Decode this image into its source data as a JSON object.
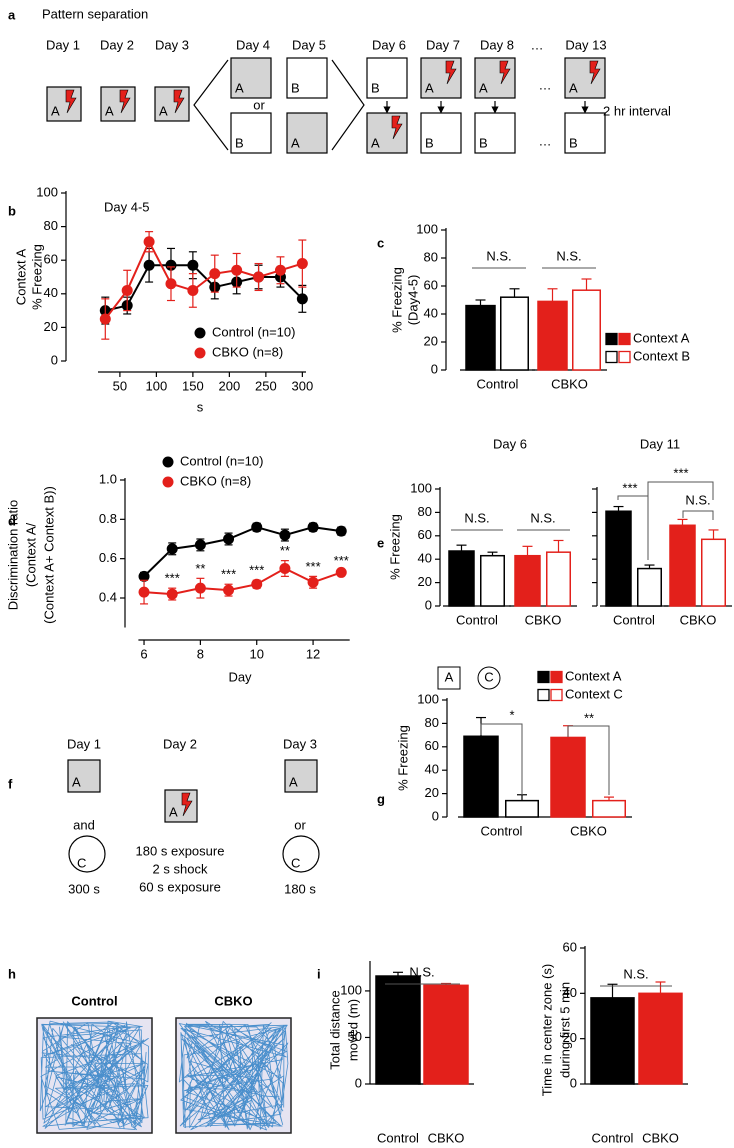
{
  "figure_a": {
    "panel": "a",
    "title": "Pattern separation",
    "days": [
      "Day 1",
      "Day 2",
      "Day 3",
      "Day 4",
      "Day 5",
      "Day 6",
      "Day 7",
      "Day 8",
      "…",
      "Day 13"
    ],
    "or": "or",
    "interval": "2 hr interval",
    "boxes": [
      {
        "label": "A",
        "gray": true,
        "shock": true
      },
      {
        "label": "A",
        "gray": true,
        "shock": true
      },
      {
        "label": "A",
        "gray": true,
        "shock": true
      },
      {
        "label": "A",
        "gray": true,
        "shock": false
      },
      {
        "label": "B",
        "gray": false,
        "shock": false
      },
      {
        "label": "B",
        "gray": false,
        "shock": false
      },
      {
        "label": "A",
        "gray": true,
        "shock": false
      },
      {
        "label": "B",
        "gray": false,
        "shock": false
      },
      {
        "label": "A",
        "gray": true,
        "shock": true
      },
      {
        "label": "A",
        "gray": true,
        "shock": true
      },
      {
        "label": "B",
        "gray": false,
        "shock": false
      },
      {
        "label": "A",
        "gray": true,
        "shock": true
      },
      {
        "label": "B",
        "gray": false,
        "shock": false
      },
      {
        "label": "A",
        "gray": true,
        "shock": true
      },
      {
        "label": "B",
        "gray": false,
        "shock": false
      }
    ]
  },
  "figure_f": {
    "panel": "f",
    "day1": {
      "label": "Day 1",
      "box": "A",
      "join": "and",
      "circle": "C",
      "duration": "300 s"
    },
    "day2": {
      "label": "Day 2",
      "box": "A",
      "protocol": [
        "180 s exposure",
        "2 s shock",
        "60 s exposure"
      ]
    },
    "day3": {
      "label": "Day 3",
      "box": "A",
      "join": "or",
      "circle": "C",
      "duration": "180 s"
    }
  },
  "figure_h": {
    "panel": "h",
    "groups": [
      {
        "name": "Control",
        "color": "#000000"
      },
      {
        "name": "CBKO",
        "color": "#e3201b"
      }
    ]
  },
  "chart_data": [
    {
      "type": "line",
      "panel": "b",
      "title": "Day 4-5",
      "ylabel": [
        "Context A",
        "% Freezing"
      ],
      "xlabel": "s",
      "x": [
        30,
        60,
        90,
        120,
        150,
        180,
        210,
        240,
        270,
        300
      ],
      "xlim": [
        20,
        305
      ],
      "xticks": [
        50,
        100,
        150,
        200,
        250,
        300
      ],
      "ylim": [
        0,
        100
      ],
      "yticks": [
        0,
        20,
        40,
        60,
        80,
        100
      ],
      "series": [
        {
          "name": "Control (n=10)",
          "color": "#000000",
          "values": [
            30,
            33,
            57,
            57,
            57,
            44,
            47,
            50,
            50,
            37
          ],
          "errors": [
            8,
            5,
            10,
            10,
            8,
            7,
            7,
            7,
            6,
            8
          ]
        },
        {
          "name": "CBKO (n=8)",
          "color": "#e3201b",
          "values": [
            25,
            42,
            71,
            46,
            42,
            52,
            54,
            50,
            54,
            58
          ],
          "errors": [
            12,
            12,
            6,
            10,
            10,
            11,
            10,
            8,
            8,
            14
          ]
        }
      ]
    },
    {
      "type": "bar",
      "panel": "c",
      "ylabel": [
        "% Freezing",
        "(Day4-5)"
      ],
      "categories": [
        "Control",
        "CBKO"
      ],
      "category_colors": [
        "#000000",
        "#e3201b"
      ],
      "ylim": [
        0,
        100
      ],
      "yticks": [
        0,
        20,
        40,
        60,
        80,
        100
      ],
      "show_tick_labels": true,
      "series": [
        {
          "name": "Context A",
          "filled": true,
          "values": [
            46,
            49
          ],
          "errors": [
            4,
            9
          ]
        },
        {
          "name": "Context B",
          "filled": false,
          "values": [
            52,
            57
          ],
          "errors": [
            6,
            8
          ]
        }
      ],
      "annotations": [
        "N.S.",
        "N.S."
      ]
    },
    {
      "type": "line",
      "panel": "d",
      "ylabel": [
        "Discrimination ratio",
        "(Context A/",
        "(Context A+ Context B))"
      ],
      "xlabel": "Day",
      "x": [
        6,
        7,
        8,
        9,
        10,
        11,
        12,
        13
      ],
      "xlim": [
        5.8,
        13.3
      ],
      "xticks": [
        6,
        8,
        10,
        12
      ],
      "ylim": [
        0.25,
        1.0
      ],
      "yticks": [
        0.4,
        0.6,
        0.8,
        {
          "value": 1,
          "label": "1.0"
        }
      ],
      "series": [
        {
          "name": "Control (n=10)",
          "color": "#000000",
          "values": [
            0.51,
            0.65,
            0.67,
            0.7,
            0.76,
            0.72,
            0.76,
            0.74
          ],
          "errors": [
            0.02,
            0.03,
            0.03,
            0.03,
            0.02,
            0.03,
            0.02,
            0.02
          ]
        },
        {
          "name": "CBKO (n=8)",
          "color": "#e3201b",
          "values": [
            0.43,
            0.42,
            0.45,
            0.44,
            0.47,
            0.55,
            0.48,
            0.53
          ],
          "errors": [
            0.06,
            0.03,
            0.05,
            0.03,
            0.02,
            0.04,
            0.03,
            0.01
          ]
        }
      ],
      "annotations": [
        "***",
        "**",
        "***",
        "***",
        "**",
        "***",
        "***"
      ]
    },
    {
      "type": "bar",
      "panel": "e",
      "title": "Day 6",
      "ylabel": [
        "% Freezing"
      ],
      "categories": [
        "Control",
        "CBKO"
      ],
      "category_colors": [
        "#000000",
        "#e3201b"
      ],
      "ylim": [
        0,
        100
      ],
      "yticks": [
        0,
        20,
        40,
        60,
        80,
        100
      ],
      "show_tick_labels": true,
      "series": [
        {
          "filled": true,
          "values": [
            47,
            43
          ],
          "errors": [
            5,
            8
          ]
        },
        {
          "filled": false,
          "values": [
            43,
            46
          ],
          "errors": [
            3,
            10
          ]
        }
      ],
      "annotations": [
        "N.S.",
        "N.S."
      ]
    },
    {
      "type": "bar",
      "title": "Day 11",
      "categories": [
        "Control",
        "CBKO"
      ],
      "category_colors": [
        "#000000",
        "#e3201b"
      ],
      "ylim": [
        0,
        100
      ],
      "yticks": [
        0,
        20,
        40,
        60,
        80,
        100
      ],
      "show_tick_labels": false,
      "series": [
        {
          "filled": true,
          "values": [
            81,
            69
          ],
          "errors": [
            4,
            5
          ]
        },
        {
          "filled": false,
          "values": [
            32,
            57
          ],
          "errors": [
            3,
            8
          ]
        }
      ],
      "annotations": [
        "***",
        "***",
        "N.S."
      ]
    },
    {
      "type": "bar",
      "panel": "g",
      "ylabel": [
        "% Freezing"
      ],
      "context_icons": [
        "A",
        "C"
      ],
      "categories": [
        "Control",
        "CBKO"
      ],
      "category_colors": [
        "#000000",
        "#e3201b"
      ],
      "ylim": [
        0,
        100
      ],
      "yticks": [
        0,
        20,
        40,
        60,
        80,
        100
      ],
      "show_tick_labels": true,
      "series": [
        {
          "name": "Context A",
          "filled": true,
          "values": [
            69,
            68
          ],
          "errors": [
            16,
            10
          ]
        },
        {
          "name": "Context C",
          "filled": false,
          "values": [
            14,
            14
          ],
          "errors": [
            5,
            3
          ]
        }
      ],
      "annotations": [
        "*",
        "**"
      ]
    },
    {
      "type": "bar",
      "panel": "i",
      "ylabel": [
        "Total distance",
        "moved (m)"
      ],
      "categories": [
        "Control",
        "CBKO"
      ],
      "category_colors": [
        "#000000",
        "#e3201b"
      ],
      "ylim": [
        0,
        130
      ],
      "yticks": [
        0,
        50,
        100
      ],
      "show_tick_labels": true,
      "series": [
        {
          "filled": true,
          "values": [
            116,
            106
          ],
          "errors": [
            4,
            2
          ]
        }
      ],
      "annotations": [
        "N.S."
      ]
    },
    {
      "type": "bar",
      "ylabel": [
        "Time in center zone (s)",
        "during first 5 min"
      ],
      "categories": [
        "Control",
        "CBKO"
      ],
      "category_colors": [
        "#000000",
        "#e3201b"
      ],
      "ylim": [
        0,
        60
      ],
      "yticks": [
        0,
        20,
        40,
        60
      ],
      "show_tick_labels": true,
      "series": [
        {
          "filled": true,
          "values": [
            38,
            40
          ],
          "errors": [
            6,
            5
          ]
        }
      ],
      "annotations": [
        "N.S."
      ]
    }
  ]
}
